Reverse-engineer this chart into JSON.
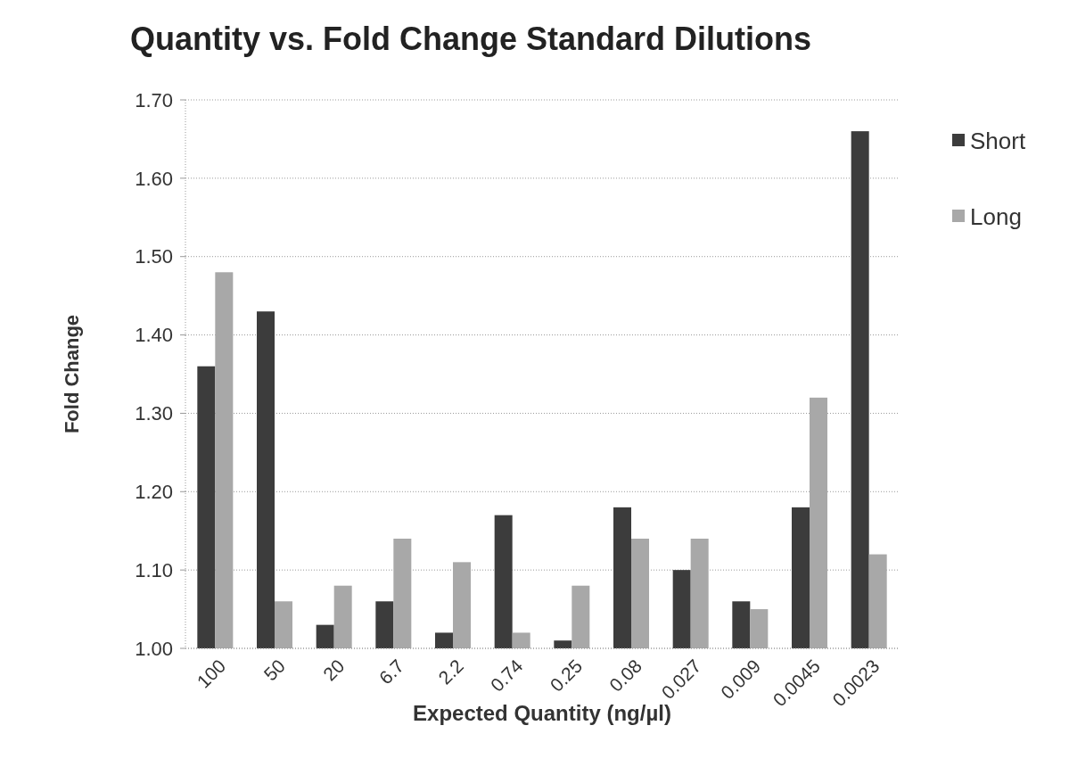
{
  "chart_data": {
    "type": "bar",
    "title": "Quantity vs. Fold Change Standard Dilutions",
    "xlabel": "Expected Quantity (ng/µl)",
    "ylabel": "Fold Change",
    "categories": [
      "100",
      "50",
      "20",
      "6.7",
      "2.2",
      "0.74",
      "0.25",
      "0.08",
      "0.027",
      "0.009",
      "0.0045",
      "0.0023"
    ],
    "series": [
      {
        "name": "Short",
        "color": "#3c3c3c",
        "values": [
          1.36,
          1.43,
          1.03,
          1.06,
          1.02,
          1.17,
          1.01,
          1.18,
          1.1,
          1.06,
          1.18,
          1.66
        ]
      },
      {
        "name": "Long",
        "color": "#a8a8a8",
        "values": [
          1.48,
          1.06,
          1.08,
          1.14,
          1.11,
          1.02,
          1.08,
          1.14,
          1.14,
          1.05,
          1.32,
          1.12
        ]
      }
    ],
    "ylim": [
      1,
      1.7
    ],
    "yticks": [
      {
        "value": 1,
        "label": "1.00"
      },
      {
        "value": 1.1,
        "label": "1.10"
      },
      {
        "value": 1.2,
        "label": "1.20"
      },
      {
        "value": 1.3,
        "label": "1.30"
      },
      {
        "value": 1.4,
        "label": "1.40"
      },
      {
        "value": 1.5,
        "label": "1.50"
      },
      {
        "value": 1.6,
        "label": "1.60"
      },
      {
        "value": 1.7,
        "label": "1.70"
      }
    ],
    "grid": "y",
    "legend": "top right"
  }
}
